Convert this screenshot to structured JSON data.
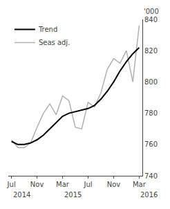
{
  "chart_data": {
    "type": "line",
    "categories": [
      "Jul",
      null,
      null,
      null,
      "Nov",
      null,
      null,
      null,
      "Mar",
      null,
      null,
      null,
      "Jul",
      null,
      null,
      null,
      "Nov",
      null,
      null,
      null,
      "Mar"
    ],
    "series": [
      {
        "name": "Seas adj.",
        "color": "#b0b0b0",
        "values": [
          763,
          758,
          758,
          761,
          771,
          780,
          786,
          779,
          791,
          788,
          771,
          770,
          787,
          784,
          793,
          808,
          815,
          812,
          820,
          800,
          836
        ]
      },
      {
        "name": "Trend",
        "color": "#000000",
        "values": [
          762,
          760,
          760,
          761,
          763,
          766,
          770,
          774,
          778,
          780,
          781,
          782,
          783,
          785,
          789,
          794,
          800,
          807,
          813,
          818,
          822
        ]
      }
    ],
    "ylim": [
      740,
      840
    ],
    "yticks": [
      740,
      760,
      780,
      800,
      820,
      840
    ],
    "ylabel": "'000",
    "annotations": [
      {
        "text": "2014",
        "x": 0
      },
      {
        "text": "2015",
        "x": 8
      },
      {
        "text": "2016",
        "x": 20
      }
    ],
    "legend": "upper left",
    "grid": false
  }
}
